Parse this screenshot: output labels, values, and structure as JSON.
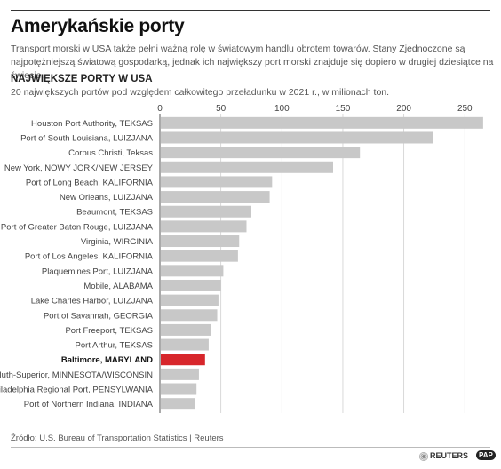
{
  "header": {
    "title": "Amerykańskie porty",
    "description": "Transport morski w USA także pełni ważną rolę w światowym handlu obrotem towarów. Stany Zjednoczone są najpotężniejszą światową gospodarką, jednak ich największy port morski znajduje się dopiero w drugiej dziesiątce na świecie.",
    "subheading": "NAJWIĘKSZE PORTY W USA",
    "subdescription": "20 największych portów pod względem całkowitego przeładunku w 2021 r., w milionach ton."
  },
  "footer": {
    "source": "Źródło: U.S. Bureau of Transportation Statistics | Reuters",
    "logo_reuters": "REUTERS",
    "logo_pap": "PAP"
  },
  "colors": {
    "bar": "#c8c8c8",
    "highlight": "#d7262b",
    "grid": "#d0d0d0"
  },
  "chart_data": {
    "type": "bar",
    "orientation": "horizontal",
    "xlim": [
      0,
      268
    ],
    "xticks": [
      0,
      50,
      100,
      150,
      200,
      250
    ],
    "grid": true,
    "highlight": "Baltimore, MARYLAND",
    "categories": [
      "Houston Port Authority, TEKSAS",
      "Port of South Louisiana, LUIZJANA",
      "Corpus Christi, Teksas",
      "New York, NOWY JORK/NEW JERSEY",
      "Port of Long Beach, KALIFORNIA",
      "New Orleans, LUIZJANA",
      "Beaumont, TEKSAS",
      "Port of Greater Baton Rouge, LUIZJANA",
      "Virginia, WIRGINIA",
      "Port of Los Angeles, KALIFORNIA",
      "Plaquemines Port, LUIZJANA",
      "Mobile, ALABAMA",
      "Lake Charles Harbor, LUIZJANA",
      "Port of Savannah, GEORGIA",
      "Port Freeport, TEKSAS",
      "Port Arthur, TEKSAS",
      "Baltimore, MARYLAND",
      "Duluth-Superior, MINNESOTA/WISCONSIN",
      "Philadelphia Regional Port, PENSYLWANIA",
      "Port of Northern Indiana, INDIANA"
    ],
    "values": [
      265,
      224,
      164,
      142,
      92,
      90,
      75,
      71,
      65,
      64,
      52,
      50,
      48,
      47,
      42,
      40,
      37,
      32,
      30,
      29
    ]
  }
}
